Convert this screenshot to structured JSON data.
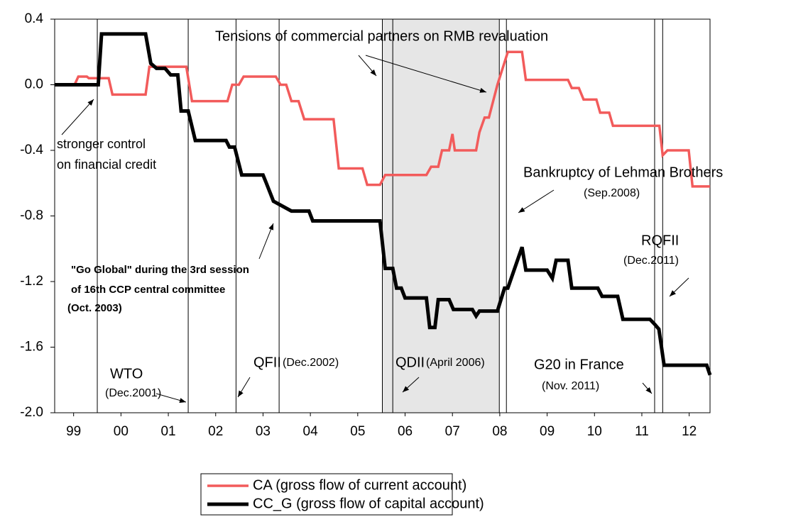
{
  "chart_data": {
    "type": "line",
    "xlim": [
      1999.1,
      2012.94
    ],
    "xticks": [
      {
        "value": 1999.5,
        "label": "99"
      },
      {
        "value": 2000.5,
        "label": "00"
      },
      {
        "value": 2001.5,
        "label": "01"
      },
      {
        "value": 2002.5,
        "label": "02"
      },
      {
        "value": 2003.5,
        "label": "03"
      },
      {
        "value": 2004.5,
        "label": "04"
      },
      {
        "value": 2005.5,
        "label": "05"
      },
      {
        "value": 2006.5,
        "label": "06"
      },
      {
        "value": 2007.5,
        "label": "07"
      },
      {
        "value": 2008.5,
        "label": "08"
      },
      {
        "value": 2009.5,
        "label": "09"
      },
      {
        "value": 2010.5,
        "label": "10"
      },
      {
        "value": 2011.5,
        "label": "11"
      },
      {
        "value": 2012.5,
        "label": "12"
      }
    ],
    "ylim": [
      -2.0,
      0.4
    ],
    "yticks": [
      {
        "value": 0.4,
        "label": "0.4"
      },
      {
        "value": 0.0,
        "label": "0.0"
      },
      {
        "value": -0.4,
        "label": "-0.4"
      },
      {
        "value": -0.8,
        "label": "-0.8"
      },
      {
        "value": -1.2,
        "label": "-1.2"
      },
      {
        "value": -1.6,
        "label": "-1.6"
      },
      {
        "value": -2.0,
        "label": "-2.0"
      }
    ],
    "event_lines": [
      2000.0,
      2001.92,
      2002.93,
      2003.84,
      2006.24,
      2008.64,
      2011.77,
      2011.94
    ],
    "shaded_period": [
      2006.02,
      2008.49
    ],
    "series": [
      {
        "name": "CA (gross flow of current account)",
        "color": "#f25b5b",
        "x": [
          1999.1,
          1999.52,
          1999.6,
          1999.78,
          1999.82,
          2000.24,
          2000.32,
          2001.02,
          2001.1,
          2001.88,
          2002.0,
          2002.75,
          2002.85,
          2002.99,
          2003.09,
          2003.77,
          2003.87,
          2003.99,
          2004.1,
          2004.25,
          2004.37,
          2004.99,
          2005.1,
          2005.6,
          2005.7,
          2005.97,
          2006.08,
          2006.95,
          2007.05,
          2007.2,
          2007.28,
          2007.43,
          2007.5,
          2007.55,
          2008.0,
          2008.07,
          2008.18,
          2008.27,
          2008.45,
          2008.67,
          2008.97,
          2009.05,
          2009.94,
          2010.02,
          2010.17,
          2010.27,
          2010.54,
          2010.62,
          2010.81,
          2010.89,
          2011.87,
          2011.94,
          2012.04,
          2012.49,
          2012.57,
          2012.94
        ],
        "values": [
          0.0,
          0.0,
          0.05,
          0.05,
          0.04,
          0.04,
          -0.06,
          -0.06,
          0.11,
          0.11,
          -0.1,
          -0.1,
          0.0,
          0.0,
          0.05,
          0.05,
          0.0,
          0.0,
          -0.1,
          -0.1,
          -0.21,
          -0.21,
          -0.51,
          -0.51,
          -0.61,
          -0.61,
          -0.55,
          -0.55,
          -0.5,
          -0.5,
          -0.4,
          -0.4,
          -0.3,
          -0.4,
          -0.4,
          -0.29,
          -0.2,
          -0.2,
          0.0,
          0.2,
          0.2,
          0.03,
          0.03,
          -0.02,
          -0.02,
          -0.09,
          -0.09,
          -0.17,
          -0.17,
          -0.25,
          -0.25,
          -0.43,
          -0.4,
          -0.4,
          -0.62,
          -0.62
        ]
      },
      {
        "name": "CC_G (gross flow of capital account)",
        "color": "#000000",
        "x": [
          1999.1,
          2000.02,
          2000.09,
          2001.02,
          2001.13,
          2001.25,
          2001.43,
          2001.55,
          2001.7,
          2001.77,
          2001.92,
          2002.07,
          2002.72,
          2002.79,
          2002.9,
          2003.05,
          2003.5,
          2003.57,
          2003.72,
          2004.1,
          2004.47,
          2004.55,
          2005.97,
          2006.08,
          2006.24,
          2006.32,
          2006.42,
          2006.5,
          2006.95,
          2007.02,
          2007.13,
          2007.2,
          2007.43,
          2007.52,
          2007.92,
          2008.0,
          2008.07,
          2008.45,
          2008.6,
          2008.67,
          2008.97,
          2009.05,
          2009.5,
          2009.61,
          2009.69,
          2009.94,
          2010.02,
          2010.57,
          2010.66,
          2010.99,
          2011.1,
          2011.67,
          2011.77,
          2011.86,
          2011.97,
          2012.87,
          2012.94
        ],
        "values": [
          0.0,
          0.0,
          0.31,
          0.31,
          0.13,
          0.1,
          0.1,
          0.06,
          0.06,
          -0.16,
          -0.16,
          -0.34,
          -0.34,
          -0.38,
          -0.38,
          -0.55,
          -0.55,
          -0.6,
          -0.71,
          -0.77,
          -0.77,
          -0.83,
          -0.83,
          -1.12,
          -1.12,
          -1.24,
          -1.24,
          -1.3,
          -1.3,
          -1.48,
          -1.48,
          -1.31,
          -1.31,
          -1.37,
          -1.37,
          -1.41,
          -1.38,
          -1.38,
          -1.24,
          -1.24,
          -0.99,
          -1.13,
          -1.13,
          -1.18,
          -1.07,
          -1.07,
          -1.24,
          -1.24,
          -1.29,
          -1.29,
          -1.43,
          -1.43,
          -1.46,
          -1.49,
          -1.71,
          -1.71,
          -1.77
        ]
      }
    ],
    "annotations": [
      "Tensions of commercial partners on RMB revaluation",
      "stronger control",
      "on financial credit",
      "Bankruptcy of Lehman Brothers",
      "(Sep.2008)",
      "RQFII",
      "(Dec.2011)",
      "\"Go Global\" during the 3rd session",
      " of 16th CCP central committee",
      "(Oct. 2003)",
      "WTO",
      "(Dec.2001)",
      "QFII",
      "(Dec.2002)",
      "QDII",
      "(April 2006)",
      "G20 in France",
      "(Nov. 2011)"
    ]
  }
}
